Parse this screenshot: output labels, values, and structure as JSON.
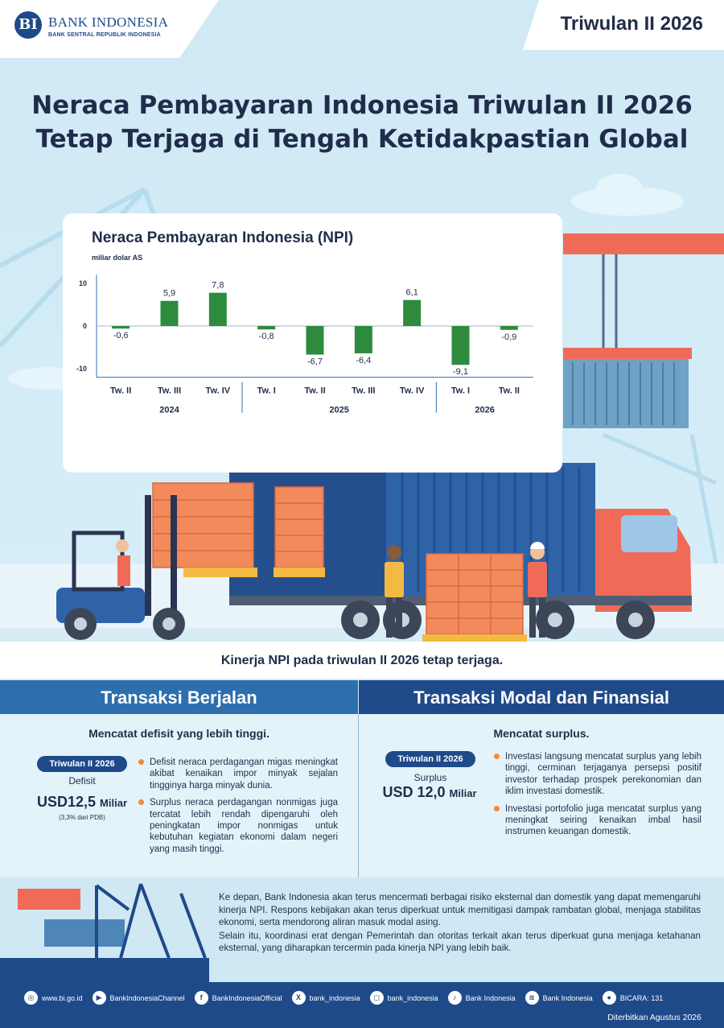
{
  "header": {
    "logo_name": "BANK INDONESIA",
    "logo_sub": "BANK SENTRAL REPUBLIK INDONESIA",
    "logo_mark": "BI",
    "period": "Triwulan II 2026"
  },
  "title": {
    "line1": "Neraca Pembayaran Indonesia Triwulan II 2026",
    "line2": "Tetap Terjaga di Tengah Ketidakpastian Global"
  },
  "chart_data": {
    "type": "bar",
    "title": "Neraca Pembayaran Indonesia (NPI)",
    "unit": "miliar dolar AS",
    "categories": [
      "Tw. II",
      "Tw. III",
      "Tw. IV",
      "Tw. I",
      "Tw. II",
      "Tw. III",
      "Tw. IV",
      "Tw. I",
      "Tw. II"
    ],
    "groups": [
      {
        "label": "2024",
        "count": 3
      },
      {
        "label": "2025",
        "count": 4
      },
      {
        "label": "2026",
        "count": 2
      }
    ],
    "values": [
      -0.6,
      5.9,
      7.8,
      -0.8,
      -6.7,
      -6.4,
      6.1,
      -9.1,
      -0.9
    ],
    "labels": [
      "-0,6",
      "5,9",
      "7,8",
      "-0,8",
      "-6,7",
      "-6,4",
      "6,1",
      "-9,1",
      "-0,9"
    ],
    "yticks": [
      "10",
      "0",
      "-10"
    ],
    "ylim": [
      -12,
      12
    ],
    "bar_color": "#2e8b3e",
    "grid": false
  },
  "caption": "Kinerja NPI pada triwulan II 2026 tetap terjaga.",
  "current_account": {
    "heading": "Transaksi Berjalan",
    "subheading": "Mencatat defisit yang lebih tinggi.",
    "pill": "Triwulan II 2026",
    "kpi_label": "Defisit",
    "kpi_value": "USD12,5",
    "kpi_unit": "Miliar",
    "kpi_note": "(3,3% dari PDB)",
    "bullets": [
      "Defisit neraca perdagangan migas meningkat akibat kenaikan impor minyak sejalan tingginya harga minyak dunia.",
      "Surplus neraca perdagangan nonmigas juga tercatat lebih rendah dipengaruhi oleh peningkatan impor nonmigas untuk kebutuhan kegiatan ekonomi dalam negeri yang masih tinggi."
    ]
  },
  "capital_account": {
    "heading": "Transaksi Modal dan Finansial",
    "subheading": "Mencatat surplus.",
    "pill": "Triwulan II 2026",
    "kpi_label": "Surplus",
    "kpi_value": "USD 12,0",
    "kpi_unit": "Miliar",
    "bullets": [
      "Investasi langsung mencatat surplus yang lebih tinggi, cerminan terjaganya persepsi positif investor terhadap prospek perekonomian dan iklim investasi domestik.",
      "Investasi portofolio juga mencatat surplus yang meningkat seiring kenaikan imbal hasil instrumen keuangan domestik."
    ]
  },
  "outlook": [
    "Ke depan, Bank Indonesia akan terus mencermati berbagai risiko eksternal dan domestik yang dapat memengaruhi kinerja NPI. Respons kebijakan akan terus diperkuat untuk memitigasi dampak rambatan global, menjaga stabilitas ekonomi, serta mendorong aliran masuk modal asing.",
    "Selain itu, koordinasi erat dengan Pemerintah dan otoritas terkait akan terus diperkuat guna menjaga ketahanan eksternal, yang diharapkan tercermin pada kinerja NPI yang lebih baik."
  ],
  "footer": {
    "links": [
      {
        "icon": "globe-icon",
        "glyph": "◎",
        "label": "www.bi.go.id"
      },
      {
        "icon": "youtube-icon",
        "glyph": "▶",
        "label": "BankIndonesiaChannel"
      },
      {
        "icon": "facebook-icon",
        "glyph": "f",
        "label": "BankIndonesiaOfficial"
      },
      {
        "icon": "x-icon",
        "glyph": "X",
        "label": "bank_indonesia"
      },
      {
        "icon": "instagram-icon",
        "glyph": "◻",
        "label": "bank_indonesia"
      },
      {
        "icon": "tiktok-icon",
        "glyph": "♪",
        "label": "Bank Indonesia"
      },
      {
        "icon": "spotify-icon",
        "glyph": "≋",
        "label": "Bank Indonesia"
      },
      {
        "icon": "bicara-icon",
        "glyph": "●",
        "label": "BICARA: 131"
      }
    ],
    "published": "Diterbitkan Agustus 2026"
  }
}
